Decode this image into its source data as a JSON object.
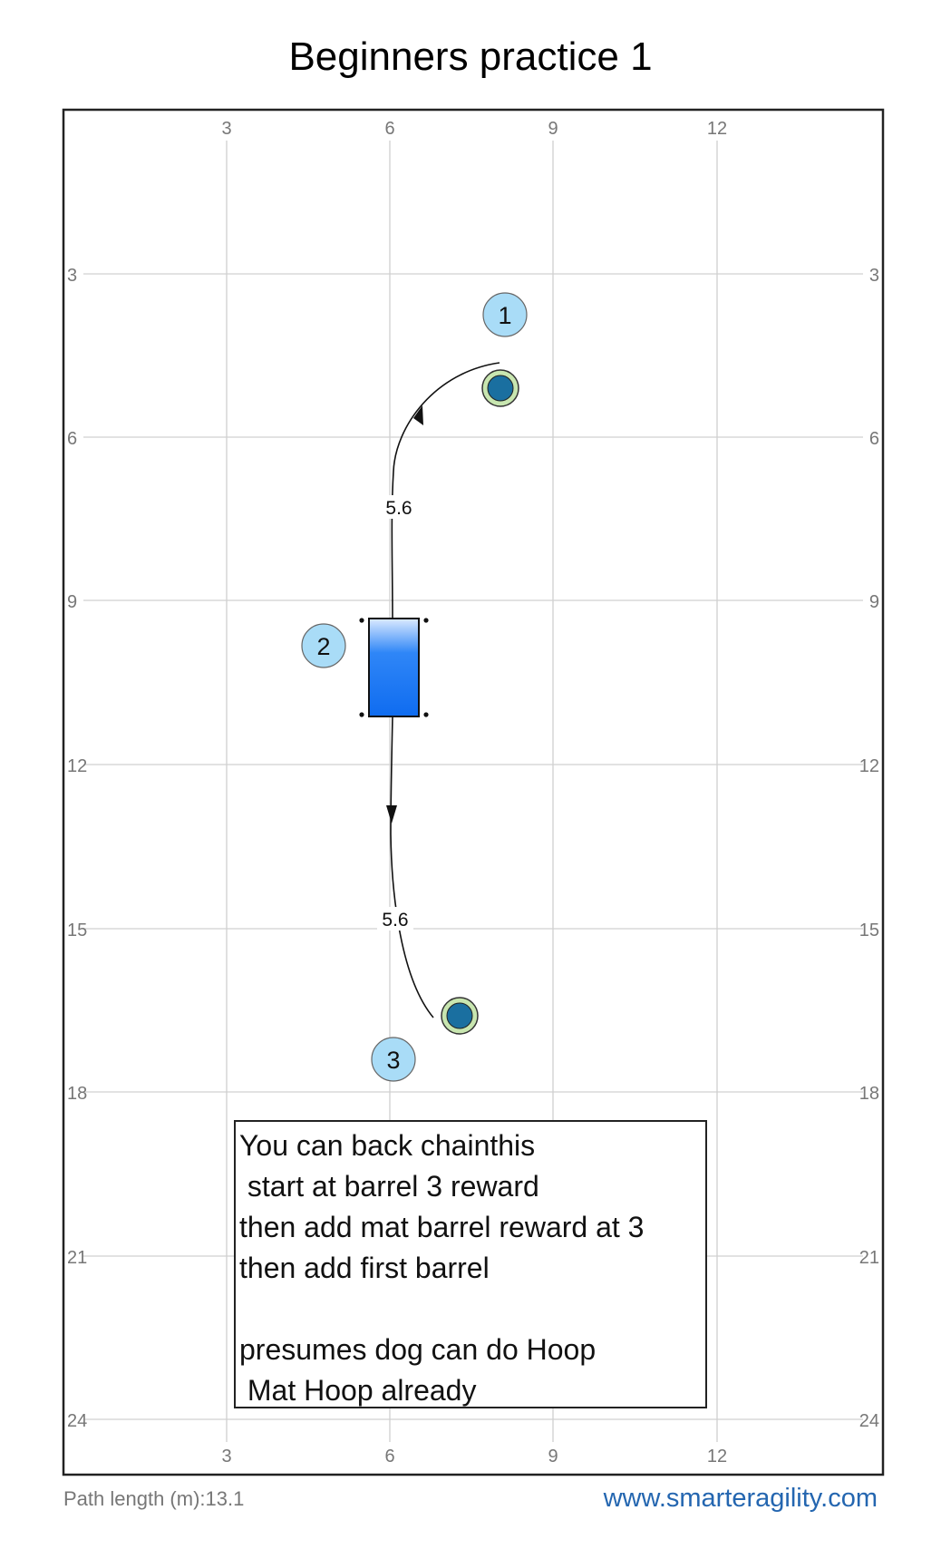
{
  "title": "Beginners practice 1",
  "axis": {
    "x_ticks": [
      "3",
      "6",
      "9",
      "12"
    ],
    "y_ticks": [
      "3",
      "6",
      "9",
      "12",
      "15",
      "18",
      "21",
      "24"
    ]
  },
  "obstacles": [
    {
      "number": "1",
      "type": "barrel",
      "x": 8.2,
      "y": 5.3
    },
    {
      "number": "2",
      "type": "mat",
      "x": 6.1,
      "y": 10.2
    },
    {
      "number": "3",
      "type": "barrel",
      "x": 7.4,
      "y": 16.7
    }
  ],
  "segments": [
    {
      "label": "5.6"
    },
    {
      "label": "5.6"
    }
  ],
  "note": {
    "lines": [
      "You can back chainthis",
      " start at barrel 3 reward",
      "then add mat barrel reward at 3",
      "then add first barrel",
      "",
      "presumes dog can do Hoop",
      " Mat Hoop already"
    ]
  },
  "footer": {
    "path_length": "Path length (m):13.1",
    "website": "www.smarteragility.com"
  },
  "colors": {
    "grid": "#d0d0d0",
    "barrel_fill": "#1a6fa0",
    "barrel_ring": "#c8e6b0",
    "number_fill": "#a9dcf7",
    "mat_fill": "#1f7ef5",
    "url": "#2466b0"
  }
}
